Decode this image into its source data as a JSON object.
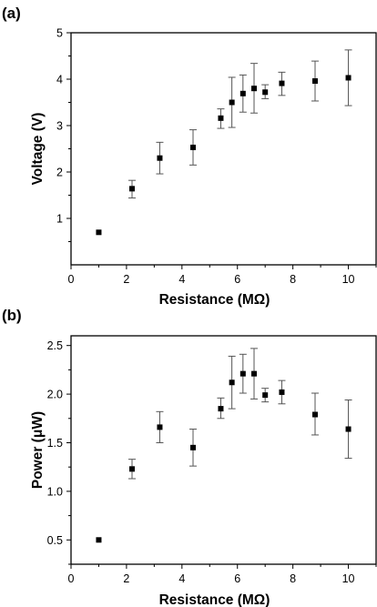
{
  "chart_data": [
    {
      "type": "scatter",
      "panel_label": "(a)",
      "xlabel": "Resistance (MΩ)",
      "ylabel": "Voltage (V)",
      "xlim": [
        0,
        11
      ],
      "ylim": [
        0,
        5
      ],
      "xticks": [
        "0",
        "2",
        "4",
        "6",
        "8",
        "10"
      ],
      "yticks": [
        "1",
        "2",
        "3",
        "4",
        "5"
      ],
      "grid": false,
      "series": [
        {
          "x": [
            1.0,
            2.2,
            3.2,
            4.4,
            5.4,
            5.8,
            6.2,
            6.6,
            7.0,
            7.6,
            8.8,
            10.0
          ],
          "y": [
            0.7,
            1.64,
            2.3,
            2.53,
            3.16,
            3.5,
            3.69,
            3.8,
            3.72,
            3.91,
            3.96,
            4.03
          ],
          "err_low": [
            0.0,
            0.2,
            0.34,
            0.38,
            0.22,
            0.54,
            0.4,
            0.53,
            0.14,
            0.26,
            0.43,
            0.6
          ],
          "err_high": [
            0.0,
            0.18,
            0.34,
            0.38,
            0.2,
            0.54,
            0.4,
            0.54,
            0.16,
            0.24,
            0.43,
            0.6
          ]
        }
      ]
    },
    {
      "type": "scatter",
      "panel_label": "(b)",
      "xlabel": "Resistance (MΩ)",
      "ylabel": "Power (μW)",
      "xlim": [
        0,
        11
      ],
      "ylim": [
        0.25,
        2.6
      ],
      "xticks": [
        "0",
        "2",
        "4",
        "6",
        "8",
        "10"
      ],
      "yticks": [
        "0.5",
        "1.0",
        "1.5",
        "2.0",
        "2.5"
      ],
      "grid": false,
      "series": [
        {
          "x": [
            1.0,
            2.2,
            3.2,
            4.4,
            5.4,
            5.8,
            6.2,
            6.6,
            7.0,
            7.6,
            8.8,
            10.0
          ],
          "y": [
            0.5,
            1.23,
            1.66,
            1.45,
            1.85,
            2.12,
            2.21,
            2.21,
            1.99,
            2.02,
            1.79,
            1.64
          ],
          "err_low": [
            0.0,
            0.1,
            0.16,
            0.19,
            0.1,
            0.27,
            0.2,
            0.26,
            0.07,
            0.12,
            0.21,
            0.3
          ],
          "err_high": [
            0.0,
            0.1,
            0.16,
            0.19,
            0.11,
            0.27,
            0.2,
            0.26,
            0.07,
            0.12,
            0.22,
            0.3
          ]
        }
      ]
    }
  ]
}
